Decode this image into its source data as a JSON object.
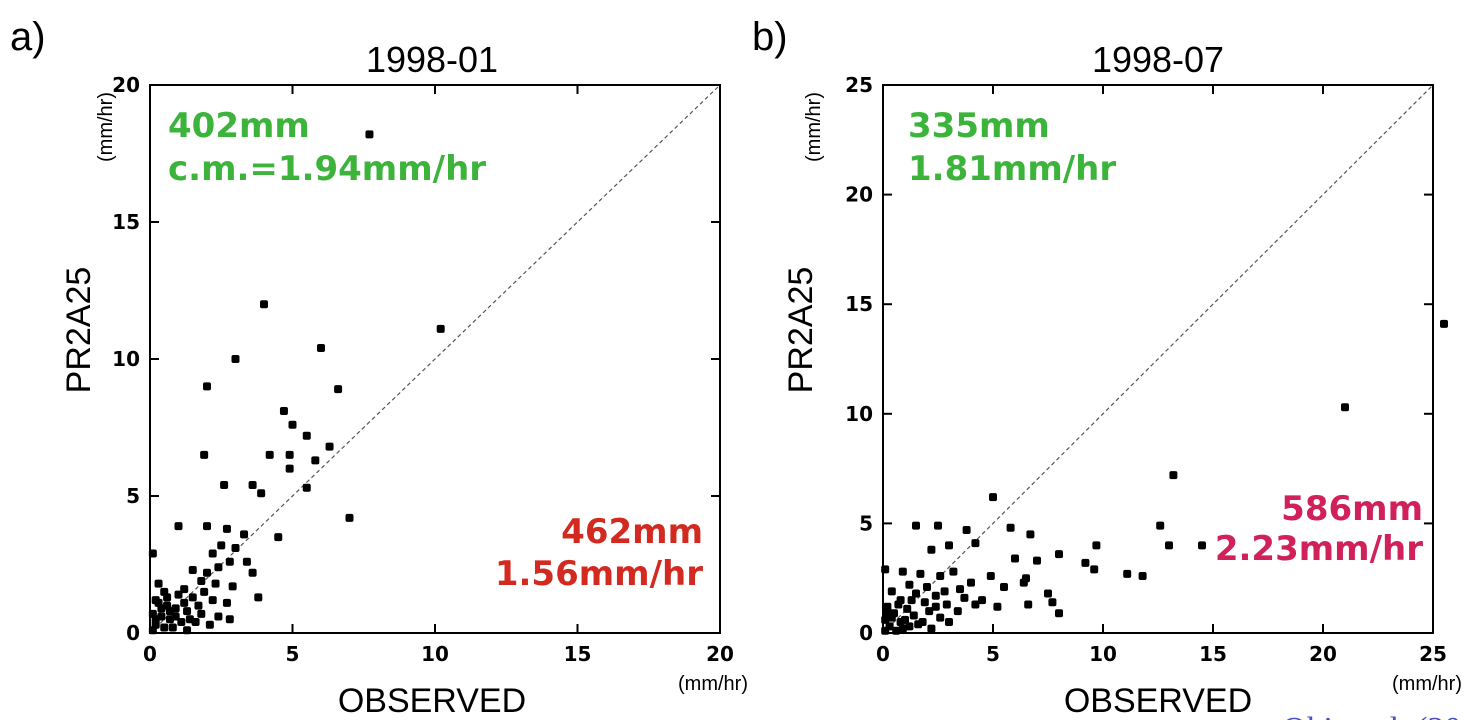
{
  "credit": "Oki et al. (20",
  "colors": {
    "green": "#3cb43c",
    "red_a": "#d22a20",
    "red_b": "#d0215a",
    "credit": "#4a4fc4"
  },
  "chart_data": [
    {
      "type": "scatter",
      "panel": "a)",
      "title": "1998-01",
      "xlabel": "OBSERVED",
      "ylabel": "PR2A25",
      "y_unit": "(mm/hr)",
      "x_unit": "(mm/hr)",
      "xlim": [
        0,
        20
      ],
      "ylim": [
        0,
        20
      ],
      "xticks": [
        "0",
        "5",
        "10",
        "15",
        "20"
      ],
      "yticks": [
        "0",
        "5",
        "10",
        "15",
        "20"
      ],
      "diagonal": "1:1 dashed",
      "annotation_green": [
        "402mm",
        "c.m.=1.94mm/hr"
      ],
      "annotation_red": [
        "462mm",
        "1.56mm/hr"
      ],
      "points": [
        [
          7.7,
          18.2
        ],
        [
          4.0,
          12.0
        ],
        [
          10.2,
          11.1
        ],
        [
          6.0,
          10.4
        ],
        [
          3.0,
          10.0
        ],
        [
          2.0,
          9.0
        ],
        [
          6.6,
          8.9
        ],
        [
          4.7,
          8.1
        ],
        [
          5.0,
          7.6
        ],
        [
          5.5,
          7.2
        ],
        [
          6.3,
          6.8
        ],
        [
          1.9,
          6.5
        ],
        [
          4.2,
          6.5
        ],
        [
          4.9,
          6.5
        ],
        [
          5.8,
          6.3
        ],
        [
          4.9,
          6.0
        ],
        [
          2.6,
          5.4
        ],
        [
          3.6,
          5.4
        ],
        [
          3.9,
          5.1
        ],
        [
          5.5,
          5.3
        ],
        [
          7.0,
          4.2
        ],
        [
          1.0,
          3.9
        ],
        [
          2.0,
          3.9
        ],
        [
          2.7,
          3.8
        ],
        [
          3.3,
          3.6
        ],
        [
          4.5,
          3.5
        ],
        [
          0.1,
          2.9
        ],
        [
          2.5,
          3.2
        ],
        [
          3.0,
          3.1
        ],
        [
          2.2,
          2.9
        ],
        [
          2.8,
          2.6
        ],
        [
          2.4,
          2.4
        ],
        [
          3.4,
          2.6
        ],
        [
          1.5,
          2.3
        ],
        [
          2.0,
          2.2
        ],
        [
          3.6,
          2.2
        ],
        [
          1.8,
          1.9
        ],
        [
          2.3,
          1.8
        ],
        [
          2.9,
          1.7
        ],
        [
          1.2,
          1.6
        ],
        [
          0.3,
          1.8
        ],
        [
          0.5,
          1.5
        ],
        [
          1.0,
          1.4
        ],
        [
          1.5,
          1.3
        ],
        [
          2.2,
          1.2
        ],
        [
          2.7,
          1.1
        ],
        [
          3.8,
          1.3
        ],
        [
          0.2,
          1.2
        ],
        [
          0.6,
          1.0
        ],
        [
          0.9,
          0.9
        ],
        [
          1.3,
          0.8
        ],
        [
          1.8,
          0.7
        ],
        [
          2.4,
          0.6
        ],
        [
          2.8,
          0.5
        ],
        [
          0.1,
          0.7
        ],
        [
          0.4,
          0.6
        ],
        [
          0.7,
          0.5
        ],
        [
          1.1,
          0.4
        ],
        [
          1.6,
          0.4
        ],
        [
          2.1,
          0.3
        ],
        [
          0.2,
          0.3
        ],
        [
          0.5,
          0.2
        ],
        [
          0.8,
          0.2
        ],
        [
          1.3,
          0.1
        ],
        [
          0.1,
          0.1
        ],
        [
          0.3,
          1.1
        ],
        [
          0.6,
          1.3
        ],
        [
          1.2,
          1.1
        ],
        [
          1.7,
          1.0
        ],
        [
          0.9,
          0.6
        ],
        [
          0.4,
          0.9
        ],
        [
          1.4,
          0.5
        ],
        [
          0.2,
          0.5
        ],
        [
          0.7,
          0.8
        ],
        [
          1.9,
          1.5
        ]
      ]
    },
    {
      "type": "scatter",
      "panel": "b)",
      "title": "1998-07",
      "xlabel": "OBSERVED",
      "ylabel": "PR2A25",
      "y_unit": "(mm/hr)",
      "x_unit": "(mm/hr)",
      "xlim": [
        0,
        25
      ],
      "ylim": [
        0,
        25
      ],
      "xticks": [
        "0",
        "5",
        "10",
        "15",
        "20",
        "25"
      ],
      "yticks": [
        "0",
        "5",
        "10",
        "15",
        "20",
        "25"
      ],
      "diagonal": "1:1 dashed",
      "annotation_green": [
        "335mm",
        "1.81mm/hr"
      ],
      "annotation_red": [
        "586mm",
        "2.23mm/hr"
      ],
      "points": [
        [
          25.5,
          14.1
        ],
        [
          21.0,
          10.3
        ],
        [
          13.2,
          7.2
        ],
        [
          5.0,
          6.2
        ],
        [
          12.6,
          4.9
        ],
        [
          1.5,
          4.9
        ],
        [
          2.5,
          4.9
        ],
        [
          3.8,
          4.7
        ],
        [
          5.8,
          4.8
        ],
        [
          6.7,
          4.5
        ],
        [
          13.0,
          4.0
        ],
        [
          14.5,
          4.0
        ],
        [
          9.7,
          4.0
        ],
        [
          4.2,
          4.1
        ],
        [
          3.0,
          4.0
        ],
        [
          8.0,
          3.6
        ],
        [
          2.2,
          3.8
        ],
        [
          6.0,
          3.4
        ],
        [
          7.0,
          3.3
        ],
        [
          9.2,
          3.2
        ],
        [
          9.6,
          2.9
        ],
        [
          0.1,
          2.9
        ],
        [
          0.9,
          2.8
        ],
        [
          1.7,
          2.7
        ],
        [
          2.6,
          2.6
        ],
        [
          3.2,
          2.8
        ],
        [
          4.9,
          2.6
        ],
        [
          6.5,
          2.5
        ],
        [
          11.1,
          2.7
        ],
        [
          11.8,
          2.6
        ],
        [
          4.0,
          2.3
        ],
        [
          1.2,
          2.2
        ],
        [
          2.0,
          2.1
        ],
        [
          3.5,
          2.0
        ],
        [
          5.5,
          2.1
        ],
        [
          6.4,
          2.3
        ],
        [
          0.4,
          1.9
        ],
        [
          1.5,
          1.8
        ],
        [
          2.4,
          1.7
        ],
        [
          3.7,
          1.6
        ],
        [
          4.5,
          1.5
        ],
        [
          7.5,
          1.8
        ],
        [
          0.8,
          1.5
        ],
        [
          1.9,
          1.4
        ],
        [
          2.9,
          1.3
        ],
        [
          4.2,
          1.3
        ],
        [
          5.2,
          1.2
        ],
        [
          6.6,
          1.3
        ],
        [
          7.7,
          1.4
        ],
        [
          0.2,
          1.2
        ],
        [
          1.1,
          1.1
        ],
        [
          2.1,
          1.0
        ],
        [
          3.4,
          1.0
        ],
        [
          8.0,
          0.9
        ],
        [
          0.5,
          0.9
        ],
        [
          1.4,
          0.8
        ],
        [
          2.6,
          0.7
        ],
        [
          0.1,
          0.6
        ],
        [
          0.8,
          0.5
        ],
        [
          1.8,
          0.5
        ],
        [
          0.3,
          0.3
        ],
        [
          1.2,
          0.3
        ],
        [
          2.2,
          0.2
        ],
        [
          0.6,
          0.1
        ],
        [
          0.1,
          0.1
        ],
        [
          1.0,
          0.6
        ],
        [
          0.4,
          0.7
        ],
        [
          1.6,
          0.4
        ],
        [
          2.4,
          1.2
        ],
        [
          0.7,
          1.3
        ],
        [
          3.0,
          0.5
        ],
        [
          0.2,
          0.9
        ],
        [
          1.3,
          1.5
        ],
        [
          0.9,
          0.2
        ],
        [
          2.8,
          1.9
        ]
      ]
    }
  ]
}
